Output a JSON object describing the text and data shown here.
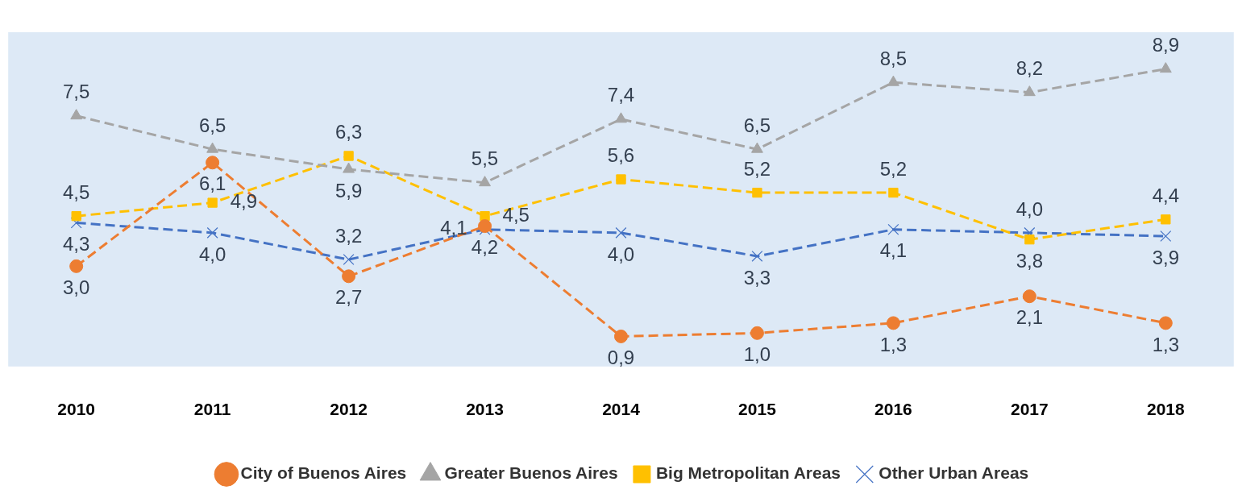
{
  "chart_data": {
    "type": "line",
    "categories": [
      "2010",
      "2011",
      "2012",
      "2013",
      "2014",
      "2015",
      "2016",
      "2017",
      "2018"
    ],
    "series": [
      {
        "name": "City of Buenos Aires",
        "color": "#ed7d31",
        "marker": "circle",
        "line_style": "dashed",
        "values": [
          3.0,
          6.1,
          2.7,
          4.2,
          0.9,
          1.0,
          1.3,
          2.1,
          1.3
        ],
        "value_labels": [
          "3,0",
          "6,1",
          "2,7",
          "4,2",
          "0,9",
          "1,0",
          "1,3",
          "2,1",
          "1,3"
        ]
      },
      {
        "name": "Greater Buenos Aires",
        "color": "#a5a5a5",
        "marker": "triangle",
        "line_style": "dashed",
        "values": [
          7.5,
          6.5,
          5.9,
          5.5,
          7.4,
          6.5,
          8.5,
          8.2,
          8.9
        ],
        "value_labels": [
          "7,5",
          "6,5",
          "5,9",
          "5,5",
          "7,4",
          "6,5",
          "8,5",
          "8,2",
          "8,9"
        ]
      },
      {
        "name": "Big Metropolitan Areas",
        "color": "#ffc000",
        "marker": "square",
        "line_style": "dashed",
        "values": [
          4.5,
          4.9,
          6.3,
          4.5,
          5.6,
          5.2,
          5.2,
          3.8,
          4.4
        ],
        "value_labels": [
          "4,5",
          "4,9",
          "6,3",
          "4,5",
          "5,6",
          "5,2",
          "5,2",
          "3,8",
          "4,4"
        ]
      },
      {
        "name": "Other Urban Areas",
        "color": "#4472c4",
        "marker": "cross",
        "line_style": "dashed",
        "values": [
          4.3,
          4.0,
          3.2,
          4.1,
          4.0,
          3.3,
          4.1,
          4.0,
          3.9
        ],
        "value_labels": [
          "4,3",
          "4,0",
          "3,2",
          "4,1",
          "4,0",
          "3,3",
          "4,1",
          "4,0",
          "3,9"
        ]
      }
    ],
    "tick_labels": "x",
    "legend": "bottom"
  }
}
